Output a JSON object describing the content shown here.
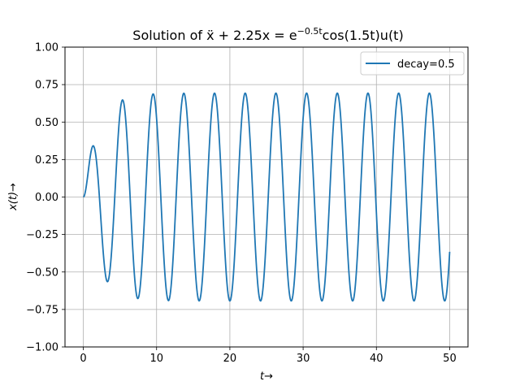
{
  "chart_data": {
    "type": "line",
    "title": "Solution of ẍ + 2.25x = e",
    "title_exp": "−0.5t",
    "title_tail": "cos(1.5t)u(t)",
    "xlabel": "t→",
    "ylabel": "x(t)→",
    "xlim": [
      -2.5,
      52.5
    ],
    "ylim": [
      -1.0,
      1.0
    ],
    "xticks": [
      0,
      10,
      20,
      30,
      40,
      50
    ],
    "yticks": [
      -1.0,
      -0.75,
      -0.5,
      -0.25,
      0.0,
      0.25,
      0.5,
      0.75,
      1.0
    ],
    "grid": true,
    "legend_position": "top-right",
    "series": [
      {
        "name": "decay=0.5",
        "color": "#1f77b4",
        "model": {
          "omega": 1.5,
          "decay": 0.5,
          "t_start": 0,
          "t_end": 50,
          "equation": "x'' + 2.25 x = exp(-0.5 t) cos(1.5 t) u(t), x(0)=0, x'(0)=0"
        }
      }
    ]
  }
}
